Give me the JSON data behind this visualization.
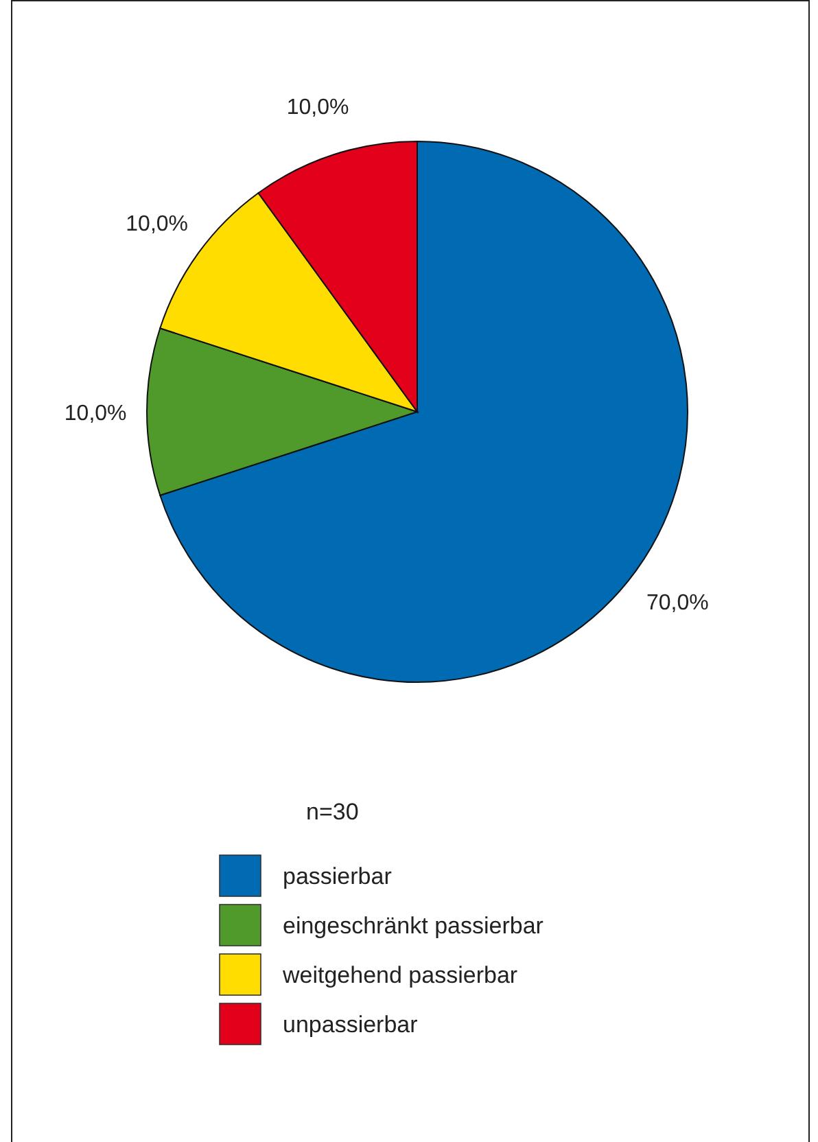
{
  "chart_data": {
    "type": "pie",
    "categories": [
      "passierbar",
      "eingeschränkt passierbar",
      "weitgehend passierbar",
      "unpassierbar"
    ],
    "values": [
      70,
      10,
      10,
      10
    ],
    "colors": [
      "#006ab3",
      "#4f9a2a",
      "#ffdd00",
      "#e2001a"
    ],
    "value_labels": [
      "70,0%",
      "10,0%",
      "10,0%",
      "10,0%"
    ],
    "annotations": [
      "n=30"
    ],
    "legend": "bottom"
  }
}
